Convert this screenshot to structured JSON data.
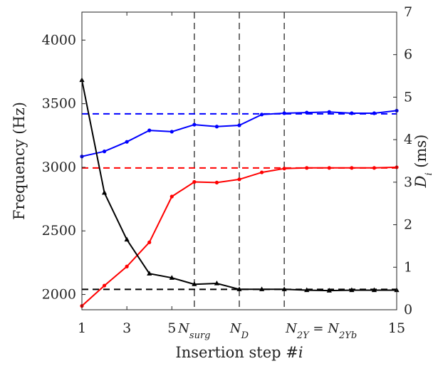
{
  "chart_data": {
    "type": "line",
    "xlabel": "Insertion step #i",
    "ylabel_left": "Frequency (Hz)",
    "ylabel_right": "D_i (ms)",
    "xlim": [
      1,
      15
    ],
    "ylim_left": [
      1880,
      4220
    ],
    "ylim_right": [
      0,
      7
    ],
    "x_ticks": [
      1,
      3,
      5,
      15
    ],
    "y_ticks_left": [
      2000,
      2500,
      3000,
      3500,
      4000
    ],
    "y_ticks_right": [
      0,
      1,
      2,
      3,
      4,
      5,
      6,
      7
    ],
    "vlines": [
      {
        "x": 6,
        "label": "N_surg"
      },
      {
        "x": 8,
        "label": "N_D"
      },
      {
        "x": 10,
        "label": "N_2Y = N_2Yb"
      }
    ],
    "series": [
      {
        "axis": "left",
        "color": "#0000ff",
        "marker": "circle",
        "x": [
          1,
          2,
          3,
          4,
          5,
          6,
          7,
          8,
          9,
          10,
          11,
          12,
          13,
          14,
          15
        ],
        "values": [
          3085,
          3125,
          3200,
          3290,
          3280,
          3335,
          3320,
          3330,
          3415,
          3425,
          3430,
          3435,
          3425,
          3425,
          3445
        ],
        "reference": 3420
      },
      {
        "axis": "left",
        "color": "#ff0000",
        "marker": "circle",
        "x": [
          1,
          2,
          3,
          4,
          5,
          6,
          7,
          8,
          9,
          10,
          11,
          12,
          13,
          14,
          15
        ],
        "values": [
          1910,
          2070,
          2220,
          2410,
          2770,
          2885,
          2880,
          2905,
          2960,
          2990,
          2995,
          2995,
          2995,
          2995,
          3000
        ],
        "reference": 2995
      },
      {
        "axis": "right",
        "color": "#000000",
        "marker": "triangle",
        "x": [
          1,
          2,
          3,
          4,
          5,
          6,
          7,
          8,
          9,
          10,
          11,
          12,
          13,
          14,
          15
        ],
        "values": [
          5.4,
          2.75,
          1.65,
          0.85,
          0.75,
          0.6,
          0.62,
          0.48,
          0.48,
          0.48,
          0.46,
          0.45,
          0.46,
          0.46,
          0.46
        ],
        "reference": 0.48
      }
    ]
  }
}
